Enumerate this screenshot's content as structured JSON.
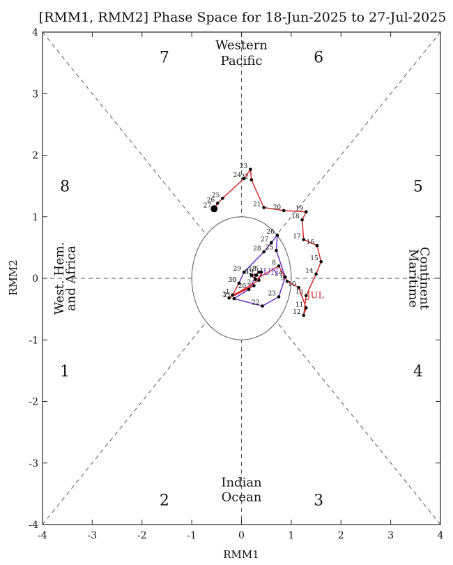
{
  "chart_data": {
    "type": "scatter",
    "title": "[RMM1, RMM2] Phase Space for 18-Jun-2025 to 27-Jul-2025",
    "xlabel": "RMM1",
    "ylabel": "RMM2",
    "xlim": [
      -4,
      4
    ],
    "ylim": [
      -4,
      4
    ],
    "x_ticks": [
      "-4",
      "-3",
      "-2",
      "-1",
      "0",
      "1",
      "2",
      "3",
      "4"
    ],
    "y_ticks": [
      "-4",
      "-3",
      "-2",
      "-1",
      "0",
      "1",
      "2",
      "3",
      "4"
    ],
    "unit_circle_radius": 1,
    "phase_numbers": [
      {
        "label": "1",
        "x": -3.55,
        "y": -1.5
      },
      {
        "label": "2",
        "x": -1.55,
        "y": -3.6
      },
      {
        "label": "3",
        "x": 1.55,
        "y": -3.6
      },
      {
        "label": "4",
        "x": 3.55,
        "y": -1.5
      },
      {
        "label": "5",
        "x": 3.55,
        "y": 1.5
      },
      {
        "label": "6",
        "x": 1.55,
        "y": 3.6
      },
      {
        "label": "7",
        "x": -1.55,
        "y": 3.6
      },
      {
        "label": "8",
        "x": -3.55,
        "y": 1.5
      }
    ],
    "region_labels": {
      "top": [
        "Western",
        "Pacific"
      ],
      "bottom": [
        "Indian",
        "Ocean"
      ],
      "left": [
        "West. Hem.",
        "and Africa"
      ],
      "right": [
        "Maritime",
        "Continent"
      ]
    },
    "series": [
      {
        "name": "JUN",
        "color": "#6a33c2",
        "month_label_point": 0,
        "points": [
          {
            "day": "18",
            "x": 0.35,
            "y": 0.1
          },
          {
            "day": "19",
            "x": 0.3,
            "y": 0.05
          },
          {
            "day": "20",
            "x": 0.15,
            "y": -0.18
          },
          {
            "day": "21",
            "x": -0.15,
            "y": -0.33
          },
          {
            "day": "22",
            "x": 0.42,
            "y": -0.45
          },
          {
            "day": "23",
            "x": 0.75,
            "y": -0.3
          },
          {
            "day": "24",
            "x": 0.88,
            "y": 0.02
          },
          {
            "day": "25",
            "x": 0.7,
            "y": 0.45
          },
          {
            "day": "26",
            "x": 0.72,
            "y": 0.7
          },
          {
            "day": "27",
            "x": 0.6,
            "y": 0.58
          },
          {
            "day": "28",
            "x": 0.45,
            "y": 0.43
          },
          {
            "day": "29",
            "x": 0.05,
            "y": 0.1
          },
          {
            "day": "30",
            "x": -0.05,
            "y": -0.08
          }
        ]
      },
      {
        "name": "JUL",
        "color": "#d42a2a",
        "month_label_point": 13,
        "points": [
          {
            "day": "30",
            "x": -0.05,
            "y": -0.08
          },
          {
            "day": "1",
            "x": -0.18,
            "y": -0.27
          },
          {
            "day": "2",
            "x": 0.25,
            "y": -0.12
          },
          {
            "day": "3",
            "x": -0.25,
            "y": -0.32
          },
          {
            "day": "4",
            "x": 0.35,
            "y": -0.03
          },
          {
            "day": "5",
            "x": 0.4,
            "y": 0.1
          },
          {
            "day": "6",
            "x": 0.2,
            "y": 0.05
          },
          {
            "day": "7",
            "x": 0.28,
            "y": -0.02
          },
          {
            "day": "8",
            "x": 0.75,
            "y": 0.2
          },
          {
            "day": "9",
            "x": 0.92,
            "y": -0.05
          },
          {
            "day": "10",
            "x": 1.15,
            "y": -0.15
          },
          {
            "day": "11",
            "x": 1.3,
            "y": -0.48
          },
          {
            "day": "12",
            "x": 1.25,
            "y": -0.6
          },
          {
            "day": "13",
            "x": 1.3,
            "y": -0.28
          },
          {
            "day": "14",
            "x": 1.5,
            "y": 0.07
          },
          {
            "day": "15",
            "x": 1.6,
            "y": 0.27
          },
          {
            "day": "16",
            "x": 1.52,
            "y": 0.53
          },
          {
            "day": "17",
            "x": 1.25,
            "y": 0.63
          },
          {
            "day": "18",
            "x": 1.22,
            "y": 0.95
          },
          {
            "day": "19",
            "x": 1.3,
            "y": 1.08
          },
          {
            "day": "20",
            "x": 0.85,
            "y": 1.1
          },
          {
            "day": "21",
            "x": 0.45,
            "y": 1.15
          },
          {
            "day": "22",
            "x": 0.2,
            "y": 1.6
          },
          {
            "day": "23",
            "x": 0.18,
            "y": 1.77
          },
          {
            "day": "24",
            "x": 0.05,
            "y": 1.62
          },
          {
            "day": "25",
            "x": -0.38,
            "y": 1.3
          },
          {
            "day": "26",
            "x": -0.48,
            "y": 1.22
          },
          {
            "day": "27",
            "x": -0.55,
            "y": 1.13
          }
        ]
      }
    ],
    "final_point": {
      "day": "27",
      "x": -0.55,
      "y": 1.13
    }
  }
}
